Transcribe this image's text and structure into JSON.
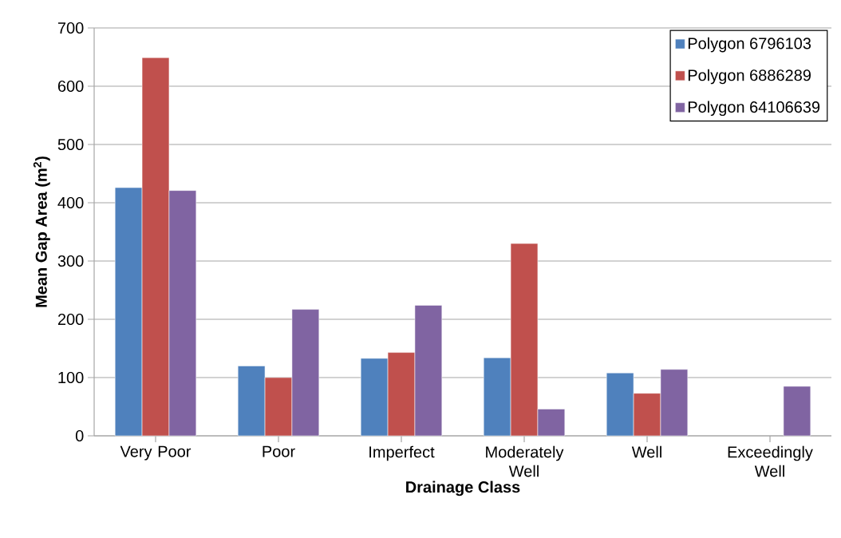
{
  "chart_data": {
    "type": "bar",
    "xlabel": "Drainage Class",
    "ylabel": "Mean Gap Area (m$^{2}$)",
    "categories": [
      "Very Poor",
      "Poor",
      "Imperfect",
      "Moderately Well",
      "Well",
      "Exceedingly Well"
    ],
    "series": [
      {
        "name": "Polygon 6796103",
        "color": "#4f81bd",
        "values": [
          426,
          120,
          133,
          134,
          108,
          null
        ]
      },
      {
        "name": "Polygon 6886289",
        "color": "#c0504d",
        "values": [
          649,
          100,
          143,
          330,
          73,
          null
        ]
      },
      {
        "name": "Polygon 64106639",
        "color": "#8064a2",
        "values": [
          421,
          217,
          224,
          46,
          114,
          85
        ]
      }
    ],
    "ylim": [
      0,
      700
    ],
    "yticks": [
      0,
      100,
      200,
      300,
      400,
      500,
      600,
      700
    ],
    "grid": "y",
    "legend": "top right"
  }
}
